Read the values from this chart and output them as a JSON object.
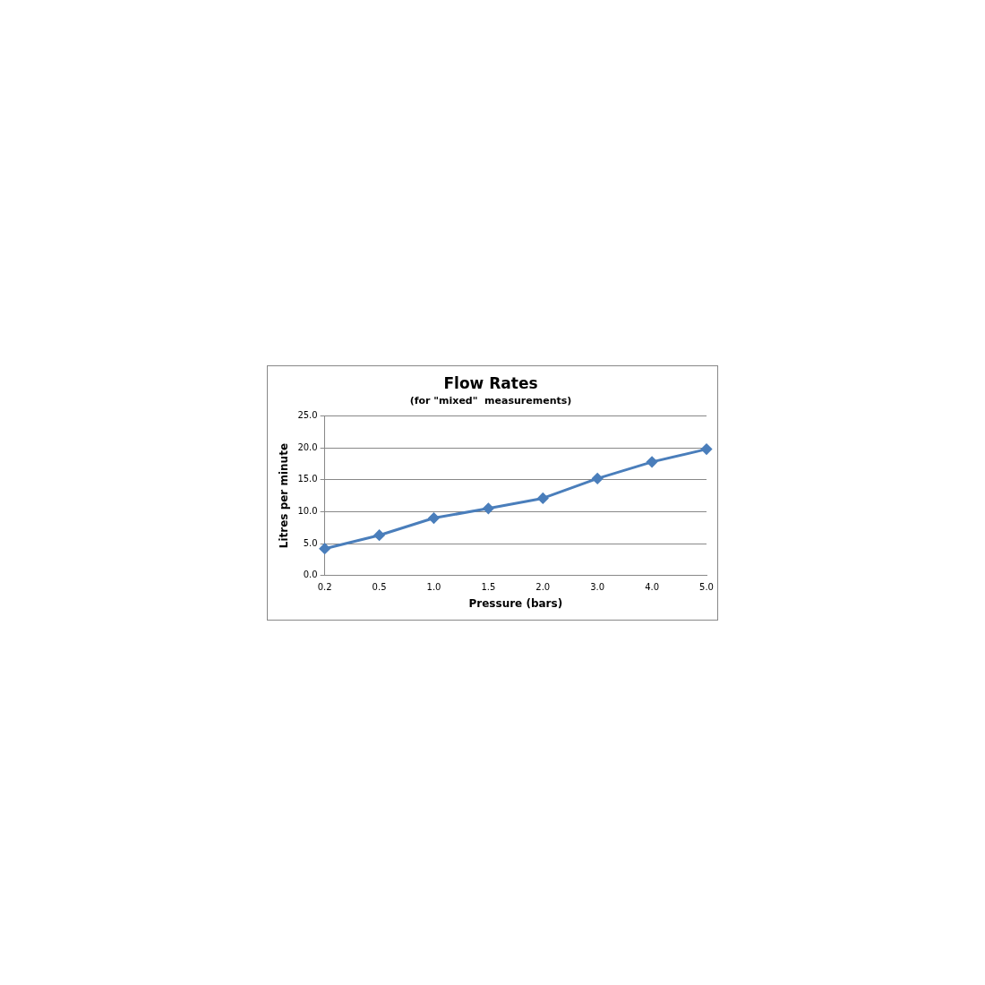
{
  "chart_data": {
    "type": "line",
    "title": "Flow Rates",
    "subtitle": "(for \"mixed\"  measurements)",
    "xlabel": "Pressure (bars)",
    "ylabel": "Litres per minute",
    "categories": [
      "0.2",
      "0.5",
      "1.0",
      "1.5",
      "2.0",
      "3.0",
      "4.0",
      "5.0"
    ],
    "series": [
      {
        "color": "#4a7ebb",
        "values": [
          4.2,
          6.3,
          9.0,
          10.5,
          12.1,
          15.2,
          17.8,
          19.8
        ]
      }
    ],
    "ylim": [
      0,
      25
    ],
    "yticks": [
      {
        "value": 0,
        "label": "0.0"
      },
      {
        "value": 5,
        "label": "5.0"
      },
      {
        "value": 10,
        "label": "10.0"
      },
      {
        "value": 15,
        "label": "15.0"
      },
      {
        "value": 20,
        "label": "20.0"
      },
      {
        "value": 25,
        "label": "25.0"
      }
    ],
    "grid": "y",
    "legend": false,
    "marker": "diamond",
    "line_style": "solid"
  }
}
